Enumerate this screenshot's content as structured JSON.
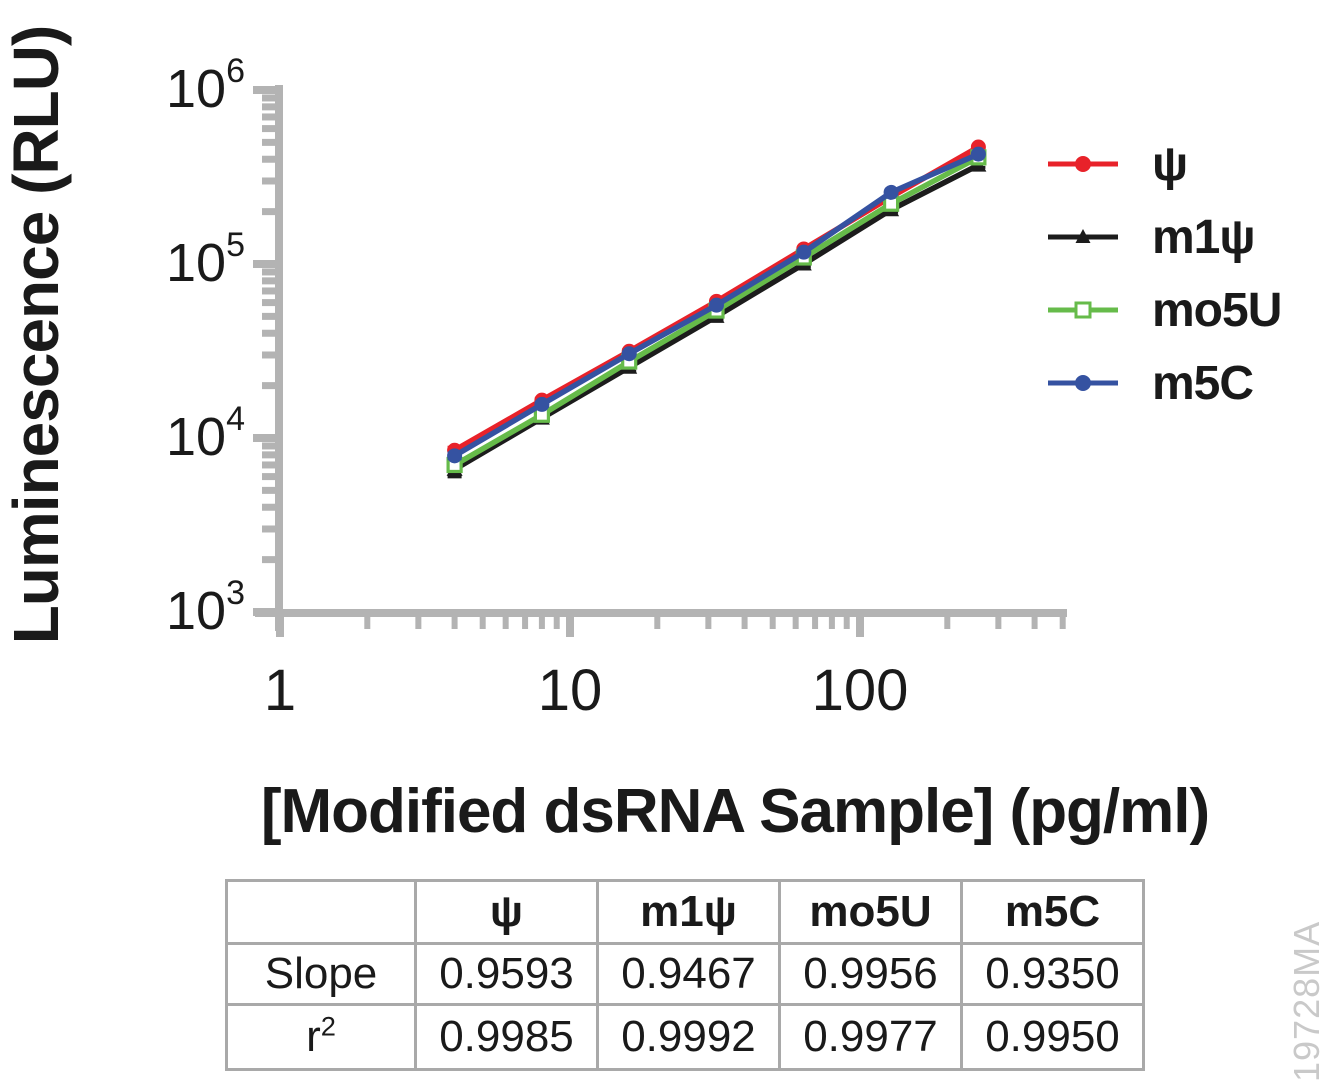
{
  "figure": {
    "watermark": "19728MA"
  },
  "chart_data": {
    "type": "line",
    "title": "",
    "xlabel": "[Modified dsRNA Sample] (pg/ml)",
    "ylabel": "Luminescence (RLU)",
    "x_scale": "log",
    "y_scale": "log",
    "xlim": [
      1,
      500
    ],
    "ylim": [
      1000,
      1000000
    ],
    "x_major_ticks": [
      1,
      10,
      100
    ],
    "y_major_ticks": [
      1000,
      10000,
      100000,
      1000000
    ],
    "grid": false,
    "legend_position": "right",
    "axis_color": "#b3b3b3",
    "x": [
      4,
      8,
      16,
      32,
      64,
      128,
      256
    ],
    "series": [
      {
        "name": "ψ",
        "color": "#e8222a",
        "marker": "circle-filled",
        "values": [
          8500,
          16500,
          31500,
          61000,
          122000,
          243000,
          470000
        ],
        "error": [
          350,
          400,
          600,
          1000,
          2000,
          4000,
          8000
        ]
      },
      {
        "name": "m1ψ",
        "color": "#1c1c1c",
        "marker": "triangle-filled",
        "values": [
          6600,
          13000,
          25500,
          50000,
          100000,
          205000,
          370000
        ],
        "error": [
          620,
          700,
          1300,
          1900,
          3500,
          6500,
          11000
        ]
      },
      {
        "name": "mo5U",
        "color": "#66bb4a",
        "marker": "square-open",
        "values": [
          7000,
          13600,
          27500,
          54000,
          109000,
          222000,
          410000
        ],
        "error": [
          300,
          400,
          600,
          1000,
          2000,
          4000,
          7000
        ]
      },
      {
        "name": "m5C",
        "color": "#3552a1",
        "marker": "circle-filled",
        "values": [
          7900,
          15600,
          30500,
          58000,
          117000,
          258000,
          428000
        ],
        "error": [
          300,
          400,
          600,
          1000,
          2000,
          4000,
          7000
        ]
      }
    ]
  },
  "table": {
    "columns": [
      "",
      "ψ",
      "m1ψ",
      "mo5U",
      "m5C"
    ],
    "rows": [
      {
        "label": "Slope",
        "sup": "",
        "values": [
          "0.9593",
          "0.9467",
          "0.9956",
          "0.9350"
        ]
      },
      {
        "label": "r",
        "sup": "2",
        "values": [
          "0.9985",
          "0.9992",
          "0.9977",
          "0.9950"
        ]
      }
    ]
  }
}
